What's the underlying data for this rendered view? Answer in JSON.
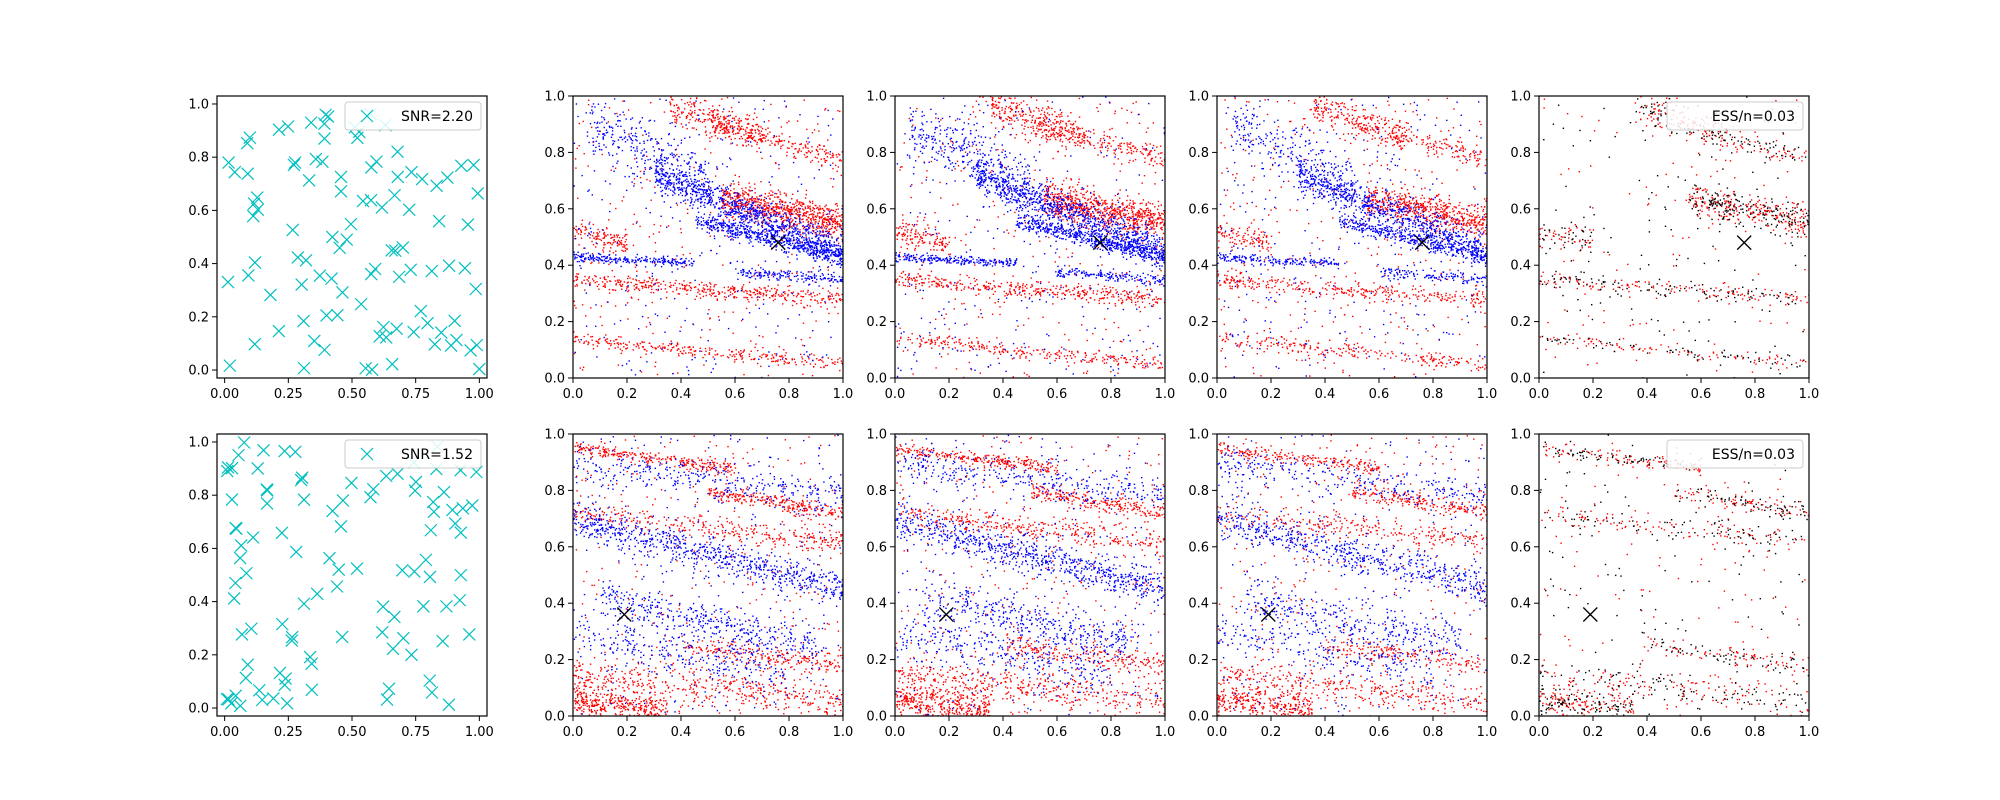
{
  "chart_data": [
    {
      "type": "scatter",
      "panel": "row1-col1",
      "xticks": [
        "0.00",
        "0.25",
        "0.50",
        "0.75",
        "1.00"
      ],
      "yticks": [
        "0.0",
        "0.2",
        "0.4",
        "0.6",
        "0.8",
        "1.0"
      ],
      "xlim": [
        -0.03,
        1.03
      ],
      "ylim": [
        -0.03,
        1.03
      ],
      "legend": {
        "label": "SNR=2.20",
        "placement": "top-right",
        "marker": "x",
        "color": "#00bfbf"
      },
      "series": [
        {
          "marker": "x",
          "color": "#00bfbf",
          "count": 100,
          "distribution": "uniform"
        }
      ]
    },
    {
      "type": "scatter",
      "panel": "row1-col2",
      "xticks": [
        "0.0",
        "0.2",
        "0.4",
        "0.6",
        "0.8",
        "1.0"
      ],
      "yticks": [
        "0.0",
        "0.2",
        "0.4",
        "0.6",
        "0.8",
        "1.0"
      ],
      "xlim": [
        0,
        1
      ],
      "ylim": [
        0,
        1
      ],
      "series": [
        {
          "color": "#ff0000"
        },
        {
          "color": "#0000ff"
        }
      ],
      "marker": {
        "x": 0.76,
        "y": 0.48,
        "symbol": "x",
        "color": "#000000"
      }
    },
    {
      "type": "scatter",
      "panel": "row1-col3",
      "xticks": [
        "0.0",
        "0.2",
        "0.4",
        "0.6",
        "0.8",
        "1.0"
      ],
      "yticks": [
        "0.0",
        "0.2",
        "0.4",
        "0.6",
        "0.8",
        "1.0"
      ],
      "xlim": [
        0,
        1
      ],
      "ylim": [
        0,
        1
      ],
      "series": [
        {
          "color": "#ff0000"
        },
        {
          "color": "#0000ff"
        }
      ],
      "marker": {
        "x": 0.76,
        "y": 0.48,
        "symbol": "x",
        "color": "#000000"
      }
    },
    {
      "type": "scatter",
      "panel": "row1-col4",
      "xticks": [
        "0.0",
        "0.2",
        "0.4",
        "0.6",
        "0.8",
        "1.0"
      ],
      "yticks": [
        "0.0",
        "0.2",
        "0.4",
        "0.6",
        "0.8",
        "1.0"
      ],
      "xlim": [
        0,
        1
      ],
      "ylim": [
        0,
        1
      ],
      "series": [
        {
          "color": "#ff0000"
        },
        {
          "color": "#0000ff"
        }
      ],
      "marker": {
        "x": 0.76,
        "y": 0.48,
        "symbol": "x",
        "color": "#000000"
      }
    },
    {
      "type": "scatter",
      "panel": "row1-col5",
      "xticks": [
        "0.0",
        "0.2",
        "0.4",
        "0.6",
        "0.8",
        "1.0"
      ],
      "yticks": [
        "0.0",
        "0.2",
        "0.4",
        "0.6",
        "0.8",
        "1.0"
      ],
      "xlim": [
        0,
        1
      ],
      "ylim": [
        0,
        1
      ],
      "legend": {
        "label": "ESS/n=0.03",
        "placement": "top-right"
      },
      "series": [
        {
          "color": "#ff0000"
        },
        {
          "color": "#000000"
        }
      ],
      "marker": {
        "x": 0.76,
        "y": 0.48,
        "symbol": "x",
        "color": "#000000"
      }
    },
    {
      "type": "scatter",
      "panel": "row2-col1",
      "xticks": [
        "0.00",
        "0.25",
        "0.50",
        "0.75",
        "1.00"
      ],
      "yticks": [
        "0.0",
        "0.2",
        "0.4",
        "0.6",
        "0.8",
        "1.0"
      ],
      "xlim": [
        -0.03,
        1.03
      ],
      "ylim": [
        -0.03,
        1.03
      ],
      "legend": {
        "label": "SNR=1.52",
        "placement": "top-right",
        "marker": "x",
        "color": "#00bfbf"
      },
      "series": [
        {
          "marker": "x",
          "color": "#00bfbf",
          "count": 100,
          "distribution": "uniform"
        }
      ]
    },
    {
      "type": "scatter",
      "panel": "row2-col2",
      "xticks": [
        "0.0",
        "0.2",
        "0.4",
        "0.6",
        "0.8",
        "1.0"
      ],
      "yticks": [
        "0.0",
        "0.2",
        "0.4",
        "0.6",
        "0.8",
        "1.0"
      ],
      "xlim": [
        0,
        1
      ],
      "ylim": [
        0,
        1
      ],
      "series": [
        {
          "color": "#ff0000"
        },
        {
          "color": "#0000ff"
        }
      ],
      "marker": {
        "x": 0.19,
        "y": 0.36,
        "symbol": "x",
        "color": "#000000"
      }
    },
    {
      "type": "scatter",
      "panel": "row2-col3",
      "xticks": [
        "0.0",
        "0.2",
        "0.4",
        "0.6",
        "0.8",
        "1.0"
      ],
      "yticks": [
        "0.0",
        "0.2",
        "0.4",
        "0.6",
        "0.8",
        "1.0"
      ],
      "xlim": [
        0,
        1
      ],
      "ylim": [
        0,
        1
      ],
      "series": [
        {
          "color": "#ff0000"
        },
        {
          "color": "#0000ff"
        }
      ],
      "marker": {
        "x": 0.19,
        "y": 0.36,
        "symbol": "x",
        "color": "#000000"
      }
    },
    {
      "type": "scatter",
      "panel": "row2-col4",
      "xticks": [
        "0.0",
        "0.2",
        "0.4",
        "0.6",
        "0.8",
        "1.0"
      ],
      "yticks": [
        "0.0",
        "0.2",
        "0.4",
        "0.6",
        "0.8",
        "1.0"
      ],
      "xlim": [
        0,
        1
      ],
      "ylim": [
        0,
        1
      ],
      "series": [
        {
          "color": "#ff0000"
        },
        {
          "color": "#0000ff"
        }
      ],
      "marker": {
        "x": 0.19,
        "y": 0.36,
        "symbol": "x",
        "color": "#000000"
      }
    },
    {
      "type": "scatter",
      "panel": "row2-col5",
      "xticks": [
        "0.0",
        "0.2",
        "0.4",
        "0.6",
        "0.8",
        "1.0"
      ],
      "yticks": [
        "0.0",
        "0.2",
        "0.4",
        "0.6",
        "0.8",
        "1.0"
      ],
      "xlim": [
        0,
        1
      ],
      "ylim": [
        0,
        1
      ],
      "legend": {
        "label": "ESS/n=0.03",
        "placement": "top-right"
      },
      "series": [
        {
          "color": "#ff0000"
        },
        {
          "color": "#000000"
        }
      ],
      "marker": {
        "x": 0.19,
        "y": 0.36,
        "symbol": "x",
        "color": "#000000"
      }
    }
  ]
}
